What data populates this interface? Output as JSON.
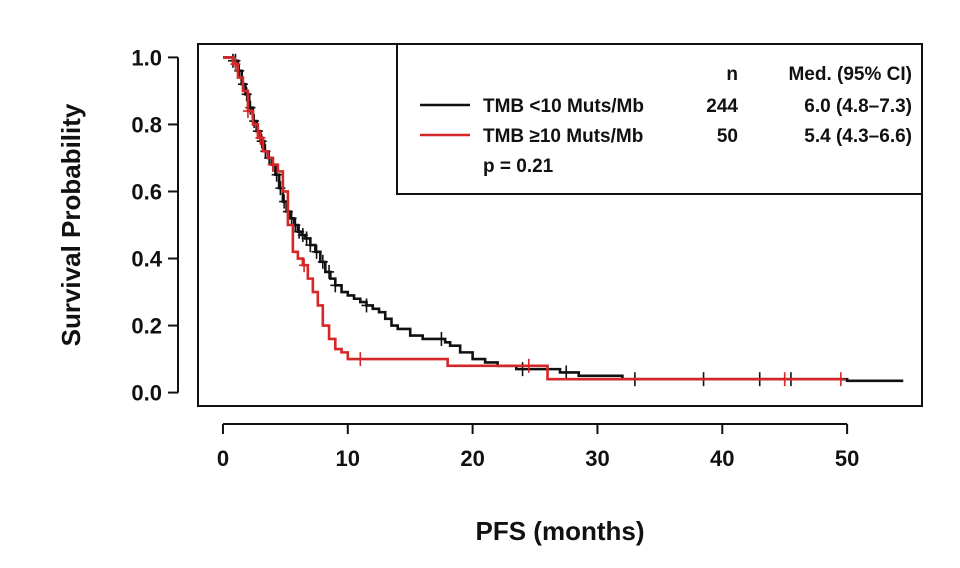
{
  "chart_data": {
    "type": "line",
    "title": "",
    "xlabel": "PFS (months)",
    "ylabel": "Survival Probability",
    "xlim": [
      -2,
      56
    ],
    "ylim": [
      -0.04,
      1.04
    ],
    "x_ticks": [
      "0",
      "10",
      "20",
      "30",
      "40",
      "50"
    ],
    "y_ticks": [
      "0.0",
      "0.2",
      "0.4",
      "0.6",
      "0.8",
      "1.0"
    ],
    "grid": false,
    "legend": {
      "placement": "top-right",
      "header_n": "n",
      "header_med": "Med. (95% CI)",
      "entries": [
        {
          "label": "TMB <10 Muts/Mb",
          "n": "244",
          "median": "6.0 (4.8–7.3)",
          "color": "#111111"
        },
        {
          "label": "TMB ≥10 Muts/Mb",
          "n": "50",
          "median": "5.4 (4.3–6.6)",
          "color": "#d62728"
        }
      ],
      "pvalue": "p = 0.21"
    },
    "series": [
      {
        "name": "TMB <10 Muts/Mb",
        "color": "#111111",
        "x": [
          0,
          0.8,
          1.2,
          1.5,
          1.8,
          2.1,
          2.4,
          2.7,
          3.0,
          3.3,
          3.6,
          3.9,
          4.2,
          4.5,
          4.8,
          5.1,
          5.4,
          5.7,
          6.0,
          6.3,
          6.6,
          7.0,
          7.4,
          7.8,
          8.2,
          8.6,
          9.0,
          9.5,
          10.0,
          10.5,
          11.0,
          11.5,
          12.0,
          12.5,
          13.0,
          13.5,
          14.0,
          15.0,
          16.0,
          17.0,
          17.8,
          18.2,
          19.0,
          20.0,
          21.0,
          22.0,
          23.5,
          25.0,
          27.0,
          28.5,
          30.0,
          32.0,
          35.0,
          38.0,
          40.0,
          43.0,
          46.0,
          50.0,
          54.5
        ],
        "y": [
          1.0,
          0.99,
          0.96,
          0.92,
          0.89,
          0.85,
          0.81,
          0.78,
          0.75,
          0.72,
          0.7,
          0.68,
          0.65,
          0.61,
          0.57,
          0.54,
          0.52,
          0.5,
          0.48,
          0.47,
          0.46,
          0.44,
          0.42,
          0.39,
          0.36,
          0.34,
          0.32,
          0.3,
          0.29,
          0.28,
          0.27,
          0.26,
          0.25,
          0.24,
          0.22,
          0.2,
          0.19,
          0.17,
          0.16,
          0.16,
          0.15,
          0.14,
          0.12,
          0.1,
          0.09,
          0.08,
          0.07,
          0.07,
          0.06,
          0.05,
          0.05,
          0.04,
          0.04,
          0.04,
          0.04,
          0.04,
          0.04,
          0.035,
          0.035
        ],
        "censor_x": [
          0.8,
          1.0,
          1.3,
          1.6,
          1.9,
          2.2,
          2.5,
          2.8,
          3.1,
          3.4,
          3.7,
          4.0,
          4.3,
          4.6,
          4.9,
          5.2,
          5.5,
          5.8,
          6.1,
          6.4,
          6.7,
          7.0,
          7.5,
          8.0,
          8.5,
          9.0,
          11.5,
          17.5,
          24.0,
          27.5,
          33.0,
          38.5,
          43.0,
          45.5
        ]
      },
      {
        "name": "TMB ≥10 Muts/Mb",
        "color": "#d62728",
        "x": [
          0,
          0.8,
          1.2,
          1.6,
          2.0,
          2.4,
          2.8,
          3.2,
          3.6,
          4.0,
          4.4,
          4.8,
          5.2,
          5.6,
          6.0,
          6.4,
          6.8,
          7.2,
          7.6,
          8.0,
          8.5,
          9.0,
          9.5,
          10.0,
          11.0,
          14.0,
          17.0,
          18.0,
          22.0,
          26.0,
          30.0,
          40.0,
          49.5
        ],
        "y": [
          1.0,
          0.98,
          0.94,
          0.9,
          0.84,
          0.8,
          0.76,
          0.72,
          0.7,
          0.68,
          0.66,
          0.6,
          0.5,
          0.42,
          0.4,
          0.38,
          0.34,
          0.3,
          0.26,
          0.2,
          0.16,
          0.13,
          0.12,
          0.1,
          0.1,
          0.1,
          0.1,
          0.08,
          0.08,
          0.04,
          0.04,
          0.04,
          0.04
        ],
        "censor_x": [
          1.0,
          2.0,
          3.0,
          4.0,
          6.5,
          11.0,
          24.5,
          45.0,
          49.5
        ]
      }
    ]
  }
}
